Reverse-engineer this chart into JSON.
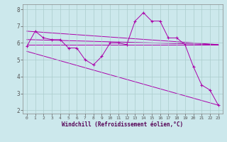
{
  "xlabel": "Windchill (Refroidissement éolien,°C)",
  "bg_color": "#cce8ec",
  "grid_color": "#aacccc",
  "line_color": "#aa00aa",
  "series1": [
    [
      0,
      5.8
    ],
    [
      1,
      6.7
    ],
    [
      2,
      6.3
    ],
    [
      3,
      6.2
    ],
    [
      4,
      6.2
    ],
    [
      5,
      5.7
    ],
    [
      6,
      5.7
    ],
    [
      7,
      5.0
    ],
    [
      8,
      4.7
    ],
    [
      9,
      5.2
    ],
    [
      10,
      6.0
    ],
    [
      11,
      6.0
    ],
    [
      12,
      5.9
    ],
    [
      13,
      7.3
    ],
    [
      14,
      7.8
    ],
    [
      15,
      7.3
    ],
    [
      16,
      7.3
    ],
    [
      17,
      6.3
    ],
    [
      18,
      6.3
    ],
    [
      19,
      5.9
    ],
    [
      20,
      4.6
    ],
    [
      21,
      3.5
    ],
    [
      22,
      3.2
    ],
    [
      23,
      2.3
    ]
  ],
  "fan_lines": [
    {
      "x0": 0,
      "y0": 6.7,
      "x1": 23,
      "y1": 5.9
    },
    {
      "x0": 0,
      "y0": 6.2,
      "x1": 23,
      "y1": 5.9
    },
    {
      "x0": 0,
      "y0": 5.9,
      "x1": 23,
      "y1": 5.9
    },
    {
      "x0": 0,
      "y0": 5.5,
      "x1": 23,
      "y1": 2.3
    }
  ],
  "ylim": [
    1.8,
    8.3
  ],
  "xlim": [
    -0.5,
    23.5
  ],
  "yticks": [
    2,
    3,
    4,
    5,
    6,
    7,
    8
  ],
  "xticks": [
    0,
    1,
    2,
    3,
    4,
    5,
    6,
    7,
    8,
    9,
    10,
    11,
    12,
    13,
    14,
    15,
    16,
    17,
    18,
    19,
    20,
    21,
    22,
    23
  ]
}
